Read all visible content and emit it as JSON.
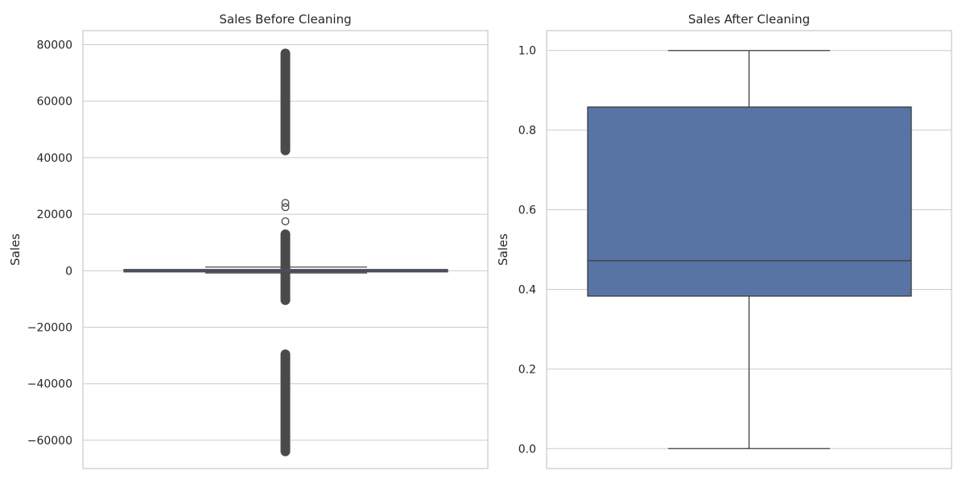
{
  "chart_data": [
    {
      "type": "box",
      "title": "Sales Before Cleaning",
      "xlabel": "",
      "ylabel": "Sales",
      "ylim": [
        -70000,
        85000
      ],
      "yticks": [
        -60000,
        -40000,
        -20000,
        0,
        20000,
        40000,
        60000,
        80000
      ],
      "ytick_labels": [
        "−60000",
        "−40000",
        "−20000",
        "0",
        "20000",
        "40000",
        "60000",
        "80000"
      ],
      "grid": true,
      "box": {
        "whisker_low": -270,
        "q1": -120,
        "median": 30,
        "q3": 300,
        "whisker_high": 480,
        "color": "#4c72b0"
      },
      "inner_lines": [
        1300,
        -800
      ],
      "outlier_ranges": [
        {
          "from": 42000,
          "to": 77500
        },
        {
          "from": -11000,
          "to": 13500
        },
        {
          "from": -64500,
          "to": -29000
        }
      ],
      "outliers": [
        24000,
        22500,
        17500
      ],
      "dark_color": "#4a4a4a"
    },
    {
      "type": "box",
      "title": "Sales After Cleaning",
      "xlabel": "",
      "ylabel": "Sales",
      "ylim": [
        -0.05,
        1.05
      ],
      "yticks": [
        0.0,
        0.2,
        0.4,
        0.6,
        0.8,
        1.0
      ],
      "ytick_labels": [
        "0.0",
        "0.2",
        "0.4",
        "0.6",
        "0.8",
        "1.0"
      ],
      "grid": true,
      "box": {
        "whisker_low": 0.0,
        "q1": 0.383,
        "median": 0.472,
        "q3": 0.858,
        "whisker_high": 1.0,
        "color": "#5874a4"
      }
    }
  ]
}
